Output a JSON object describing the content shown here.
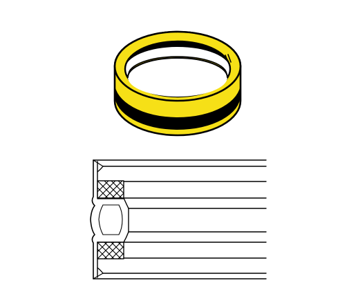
{
  "diagram": {
    "kind": "seal ring product drawing",
    "views": [
      "isometric-ring-view",
      "half-section-view"
    ],
    "colors": {
      "ring_body": "#f6e017",
      "groove_band": "#000000",
      "outline": "#000000",
      "background": "#ffffff"
    }
  }
}
